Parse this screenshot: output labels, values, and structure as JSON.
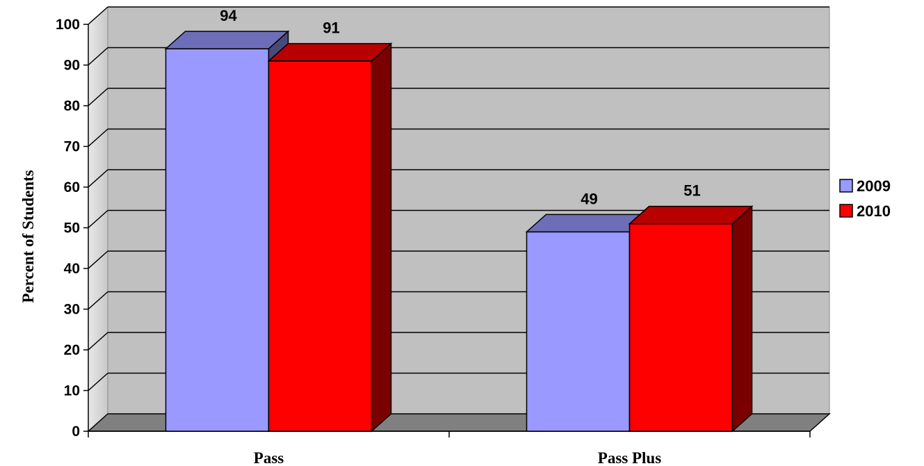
{
  "chart_data": {
    "type": "bar",
    "title": "",
    "xlabel": "",
    "ylabel": "Percent of Students",
    "ylim": [
      0,
      100
    ],
    "yticks": [
      "0",
      "10",
      "20",
      "30",
      "40",
      "50",
      "60",
      "70",
      "80",
      "90",
      "100"
    ],
    "categories": [
      "Pass",
      "Pass Plus"
    ],
    "series": [
      {
        "name": "2009",
        "values": [
          94,
          49
        ],
        "color": "#9999ff"
      },
      {
        "name": "2010",
        "values": [
          91,
          51
        ],
        "color": "#ff0000"
      }
    ],
    "grid": true,
    "legend_position": "right",
    "style": "3d"
  }
}
